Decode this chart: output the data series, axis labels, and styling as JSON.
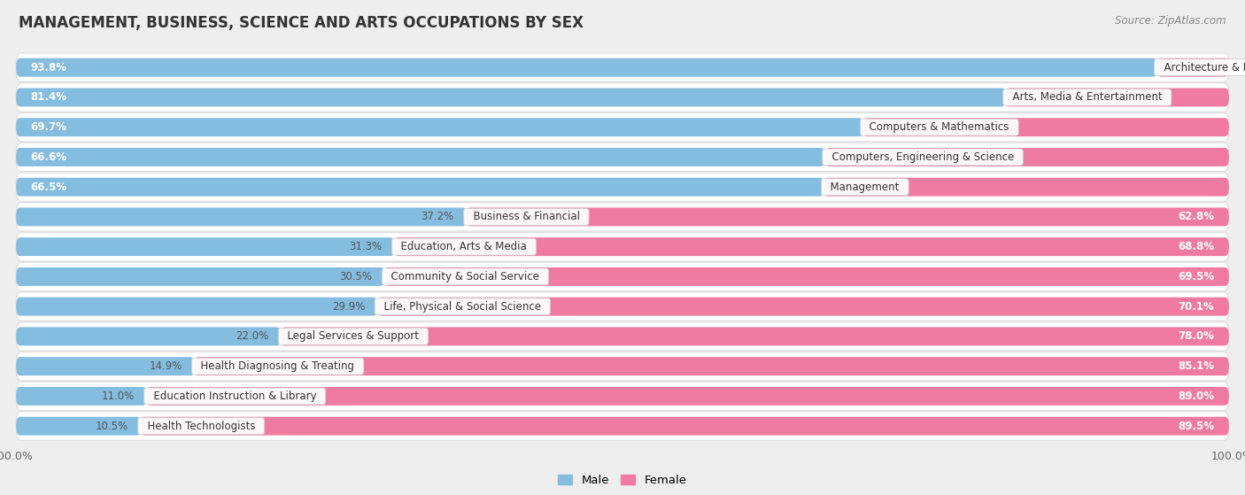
{
  "title": "MANAGEMENT, BUSINESS, SCIENCE AND ARTS OCCUPATIONS BY SEX",
  "source": "Source: ZipAtlas.com",
  "categories": [
    "Architecture & Engineering",
    "Arts, Media & Entertainment",
    "Computers & Mathematics",
    "Computers, Engineering & Science",
    "Management",
    "Business & Financial",
    "Education, Arts & Media",
    "Community & Social Service",
    "Life, Physical & Social Science",
    "Legal Services & Support",
    "Health Diagnosing & Treating",
    "Education Instruction & Library",
    "Health Technologists"
  ],
  "male_pct": [
    93.8,
    81.4,
    69.7,
    66.6,
    66.5,
    37.2,
    31.3,
    30.5,
    29.9,
    22.0,
    14.9,
    11.0,
    10.5
  ],
  "female_pct": [
    6.2,
    18.6,
    30.3,
    33.4,
    33.5,
    62.8,
    68.8,
    69.5,
    70.1,
    78.0,
    85.1,
    89.0,
    89.5
  ],
  "male_color": "#85BDE0",
  "female_color": "#F07BA0",
  "bg_color": "#EEEEEE",
  "row_bg": "#F5F5F5",
  "row_border": "#DDDDDD",
  "bar_height": 0.62,
  "title_fontsize": 12,
  "source_fontsize": 8.5,
  "label_fontsize": 8.5,
  "category_fontsize": 8.5,
  "inside_label_threshold": 50
}
